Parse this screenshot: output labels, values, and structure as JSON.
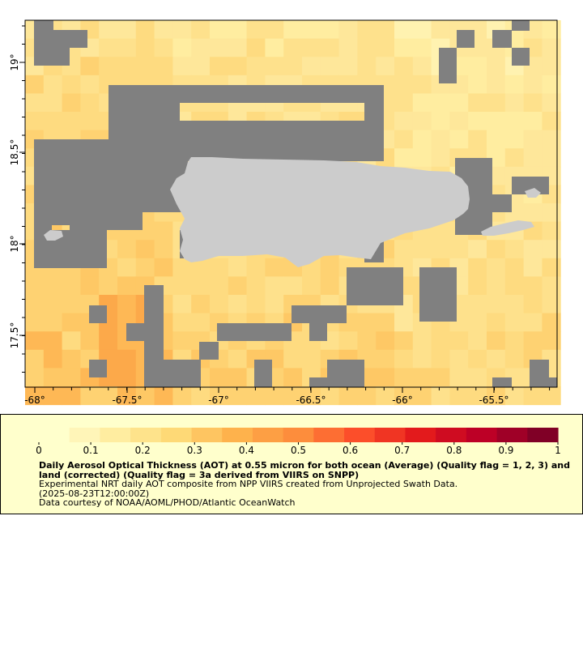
{
  "map": {
    "lon_ticks": [
      "-68°",
      "-67.5°",
      "-67°",
      "-66.5°",
      "-66°",
      "-65.5°"
    ],
    "lat_ticks": [
      "19°",
      "18.5°",
      "18°",
      "17.5°"
    ],
    "nodata_color": "#808080",
    "land_color": "#cccccc",
    "border_color": "#000000"
  },
  "legend": {
    "tick_labels": [
      "0",
      "0.1",
      "0.2",
      "0.3",
      "0.4",
      "0.5",
      "0.6",
      "0.7",
      "0.8",
      "0.9",
      "1"
    ],
    "colors": [
      "#ffffcc",
      "#fff5b8",
      "#ffeda0",
      "#fee38b",
      "#fed976",
      "#fec561",
      "#feb24c",
      "#fd9f44",
      "#fd8d3c",
      "#fd6e33",
      "#fc4e2a",
      "#f03523",
      "#e31a1c",
      "#cf0c21",
      "#bd0026",
      "#9f0027",
      "#800026"
    ],
    "title": "Daily Aerosol Optical Thickness (AOT) at 0.55 micron for both ocean (Average) (Quality flag = 1, 2, 3) and land (corrected) (Quality flag = 3a derived from VIIRS on SNPP)",
    "line1": "Experimental NRT daily AOT composite from NPP VIIRS created from Unprojected Swath Data.",
    "line2": "(2025-08-23T12:00:00Z)",
    "line3": "Data courtesy of NOAA/AOML/PHOD/Atlantic OceanWatch"
  }
}
